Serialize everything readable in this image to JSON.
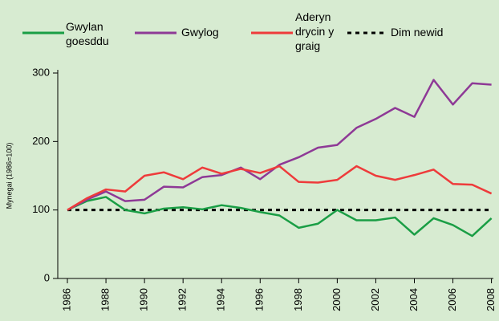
{
  "chart_data": {
    "type": "line",
    "y_label": "Mynegai (1986=100)",
    "x": [
      1986,
      1987,
      1988,
      1989,
      1990,
      1991,
      1992,
      1993,
      1994,
      1995,
      1996,
      1997,
      1998,
      1999,
      2000,
      2001,
      2002,
      2003,
      2004,
      2005,
      2006,
      2007,
      2008
    ],
    "series": [
      {
        "name": "Gwylan goesddu",
        "color": "#1a9e45",
        "values": [
          100,
          113,
          119,
          100,
          95,
          102,
          104,
          101,
          107,
          103,
          97,
          92,
          74,
          80,
          100,
          85,
          85,
          89,
          64,
          88,
          78,
          62,
          88
        ]
      },
      {
        "name": "Gwylog",
        "color": "#8e3996",
        "values": [
          100,
          115,
          127,
          113,
          115,
          134,
          133,
          148,
          151,
          162,
          145,
          166,
          177,
          191,
          195,
          220,
          233,
          249,
          236,
          290,
          254,
          285,
          283
        ]
      },
      {
        "name": "Aderyn drycin y graig",
        "color": "#ee3b3b",
        "values": [
          100,
          117,
          130,
          127,
          150,
          155,
          145,
          162,
          153,
          160,
          154,
          164,
          141,
          140,
          144,
          164,
          150,
          144,
          151,
          159,
          138,
          137,
          124
        ]
      }
    ],
    "reference_line": {
      "name": "Dim newid",
      "value": 100,
      "color": "#000000"
    },
    "xlim": [
      1985.5,
      2008.1
    ],
    "xticks": [
      1986,
      1988,
      1990,
      1992,
      1994,
      1996,
      1998,
      2000,
      2002,
      2004,
      2006,
      2008
    ],
    "ylim": [
      0,
      300
    ],
    "yticks": [
      0,
      100,
      200,
      300
    ]
  }
}
